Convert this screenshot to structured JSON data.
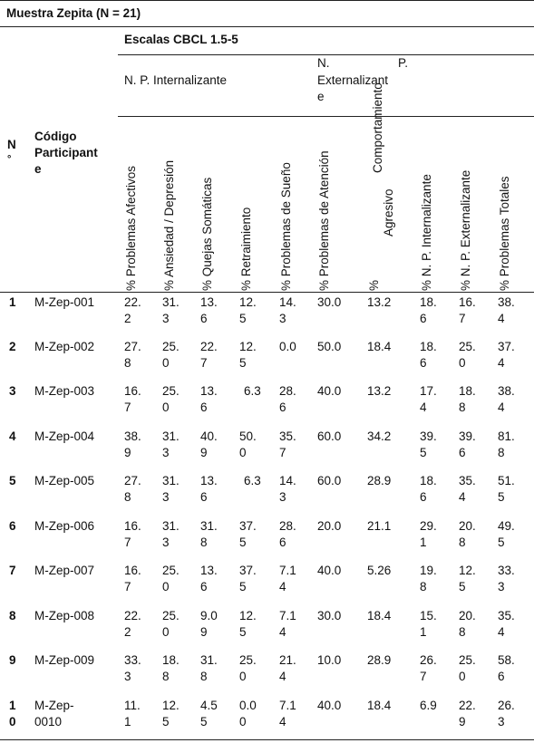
{
  "title": "Muestra Zepita (N = 21)",
  "scales_header": "Escalas CBCL 1.5-5",
  "group_internal": "N. P. Internalizante",
  "group_external": {
    "line1_a": "N.",
    "line1_b": "P.",
    "line2": "Externalizant",
    "line3": "e"
  },
  "col_no": {
    "line1": "N",
    "line2": "°"
  },
  "col_code": {
    "line1": "Código",
    "line2": "Participant",
    "line3": "e"
  },
  "columns": [
    "% Problemas Afectivos",
    "% Ansiedad / Depresión",
    "% Quejas Somáticas",
    "% Retraimiento",
    "% Problemas de Sueño",
    "% Problemas de Atención",
    "Comportamiento",
    "% N. P. Internalizante",
    "% N. P. Externalizante",
    "% Problemas Totales"
  ],
  "col_agresivo": {
    "line1": "%",
    "line2": "Agresivo"
  },
  "rows": [
    {
      "n": [
        "1"
      ],
      "code": [
        "M-Zep-001"
      ],
      "v": [
        [
          "22.",
          "2"
        ],
        [
          "31.",
          "3"
        ],
        [
          "13.",
          "6"
        ],
        [
          "12.",
          "5"
        ],
        [
          "14.",
          "3"
        ],
        [
          "30.0"
        ],
        [
          "13.2"
        ],
        [
          "18.",
          "6"
        ],
        [
          "16.",
          "7"
        ],
        [
          "38.",
          "4"
        ]
      ]
    },
    {
      "n": [
        "2"
      ],
      "code": [
        "M-Zep-002"
      ],
      "v": [
        [
          "27.",
          "8"
        ],
        [
          "25.",
          "0"
        ],
        [
          "22.",
          "7"
        ],
        [
          "12.",
          "5"
        ],
        [
          "0.0"
        ],
        [
          "50.0"
        ],
        [
          "18.4"
        ],
        [
          "18.",
          "6"
        ],
        [
          "25.",
          "0"
        ],
        [
          "37.",
          "4"
        ]
      ]
    },
    {
      "n": [
        "3"
      ],
      "code": [
        "M-Zep-003"
      ],
      "v": [
        [
          "16.",
          "7"
        ],
        [
          "25.",
          "0"
        ],
        [
          "13.",
          "6"
        ],
        [
          "6.3"
        ],
        [
          "28.",
          "6"
        ],
        [
          "40.0"
        ],
        [
          "13.2"
        ],
        [
          "17.",
          "4"
        ],
        [
          "18.",
          "8"
        ],
        [
          "38.",
          "4"
        ]
      ]
    },
    {
      "n": [
        "4"
      ],
      "code": [
        "M-Zep-004"
      ],
      "v": [
        [
          "38.",
          "9"
        ],
        [
          "31.",
          "3"
        ],
        [
          "40.",
          "9"
        ],
        [
          "50.",
          "0"
        ],
        [
          "35.",
          "7"
        ],
        [
          "60.0"
        ],
        [
          "34.2"
        ],
        [
          "39.",
          "5"
        ],
        [
          "39.",
          "6"
        ],
        [
          "81.",
          "8"
        ]
      ]
    },
    {
      "n": [
        "5"
      ],
      "code": [
        "M-Zep-005"
      ],
      "v": [
        [
          "27.",
          "8"
        ],
        [
          "31.",
          "3"
        ],
        [
          "13.",
          "6"
        ],
        [
          "6.3"
        ],
        [
          "14.",
          "3"
        ],
        [
          "60.0"
        ],
        [
          "28.9"
        ],
        [
          "18.",
          "6"
        ],
        [
          "35.",
          "4"
        ],
        [
          "51.",
          "5"
        ]
      ]
    },
    {
      "n": [
        "6"
      ],
      "code": [
        "M-Zep-006"
      ],
      "v": [
        [
          "16.",
          "7"
        ],
        [
          "31.",
          "3"
        ],
        [
          "31.",
          "8"
        ],
        [
          "37.",
          "5"
        ],
        [
          "28.",
          "6"
        ],
        [
          "20.0"
        ],
        [
          "21.1"
        ],
        [
          "29.",
          "1"
        ],
        [
          "20.",
          "8"
        ],
        [
          "49.",
          "5"
        ]
      ]
    },
    {
      "n": [
        "7"
      ],
      "code": [
        "M-Zep-007"
      ],
      "v": [
        [
          "16.",
          "7"
        ],
        [
          "25.",
          "0"
        ],
        [
          "13.",
          "6"
        ],
        [
          "37.",
          "5"
        ],
        [
          "7.1",
          "4"
        ],
        [
          "40.0"
        ],
        [
          "5.26"
        ],
        [
          "19.",
          "8"
        ],
        [
          "12.",
          "5"
        ],
        [
          "33.",
          "3"
        ]
      ]
    },
    {
      "n": [
        "8"
      ],
      "code": [
        "M-Zep-008"
      ],
      "v": [
        [
          "22.",
          "2"
        ],
        [
          "25.",
          "0"
        ],
        [
          "9.0",
          "9"
        ],
        [
          "12.",
          "5"
        ],
        [
          "7.1",
          "4"
        ],
        [
          "30.0"
        ],
        [
          "18.4"
        ],
        [
          "15.",
          "1"
        ],
        [
          "20.",
          "8"
        ],
        [
          "35.",
          "4"
        ]
      ]
    },
    {
      "n": [
        "9"
      ],
      "code": [
        "M-Zep-009"
      ],
      "v": [
        [
          "33.",
          "3"
        ],
        [
          "18.",
          "8"
        ],
        [
          "31.",
          "8"
        ],
        [
          "25.",
          "0"
        ],
        [
          "21.",
          "4"
        ],
        [
          "10.0"
        ],
        [
          "28.9"
        ],
        [
          "26.",
          "7"
        ],
        [
          "25.",
          "0"
        ],
        [
          "58.",
          "6"
        ]
      ]
    },
    {
      "n": [
        "1",
        "0"
      ],
      "code": [
        "M-Zep-",
        "0010"
      ],
      "v": [
        [
          "11.",
          "1"
        ],
        [
          "12.",
          "5"
        ],
        [
          "4.5",
          "5"
        ],
        [
          "0.0",
          "0"
        ],
        [
          "7.1",
          "4"
        ],
        [
          "40.0"
        ],
        [
          "18.4"
        ],
        [
          "6.9"
        ],
        [
          "22.",
          "9"
        ],
        [
          "26.",
          "3"
        ]
      ]
    }
  ]
}
